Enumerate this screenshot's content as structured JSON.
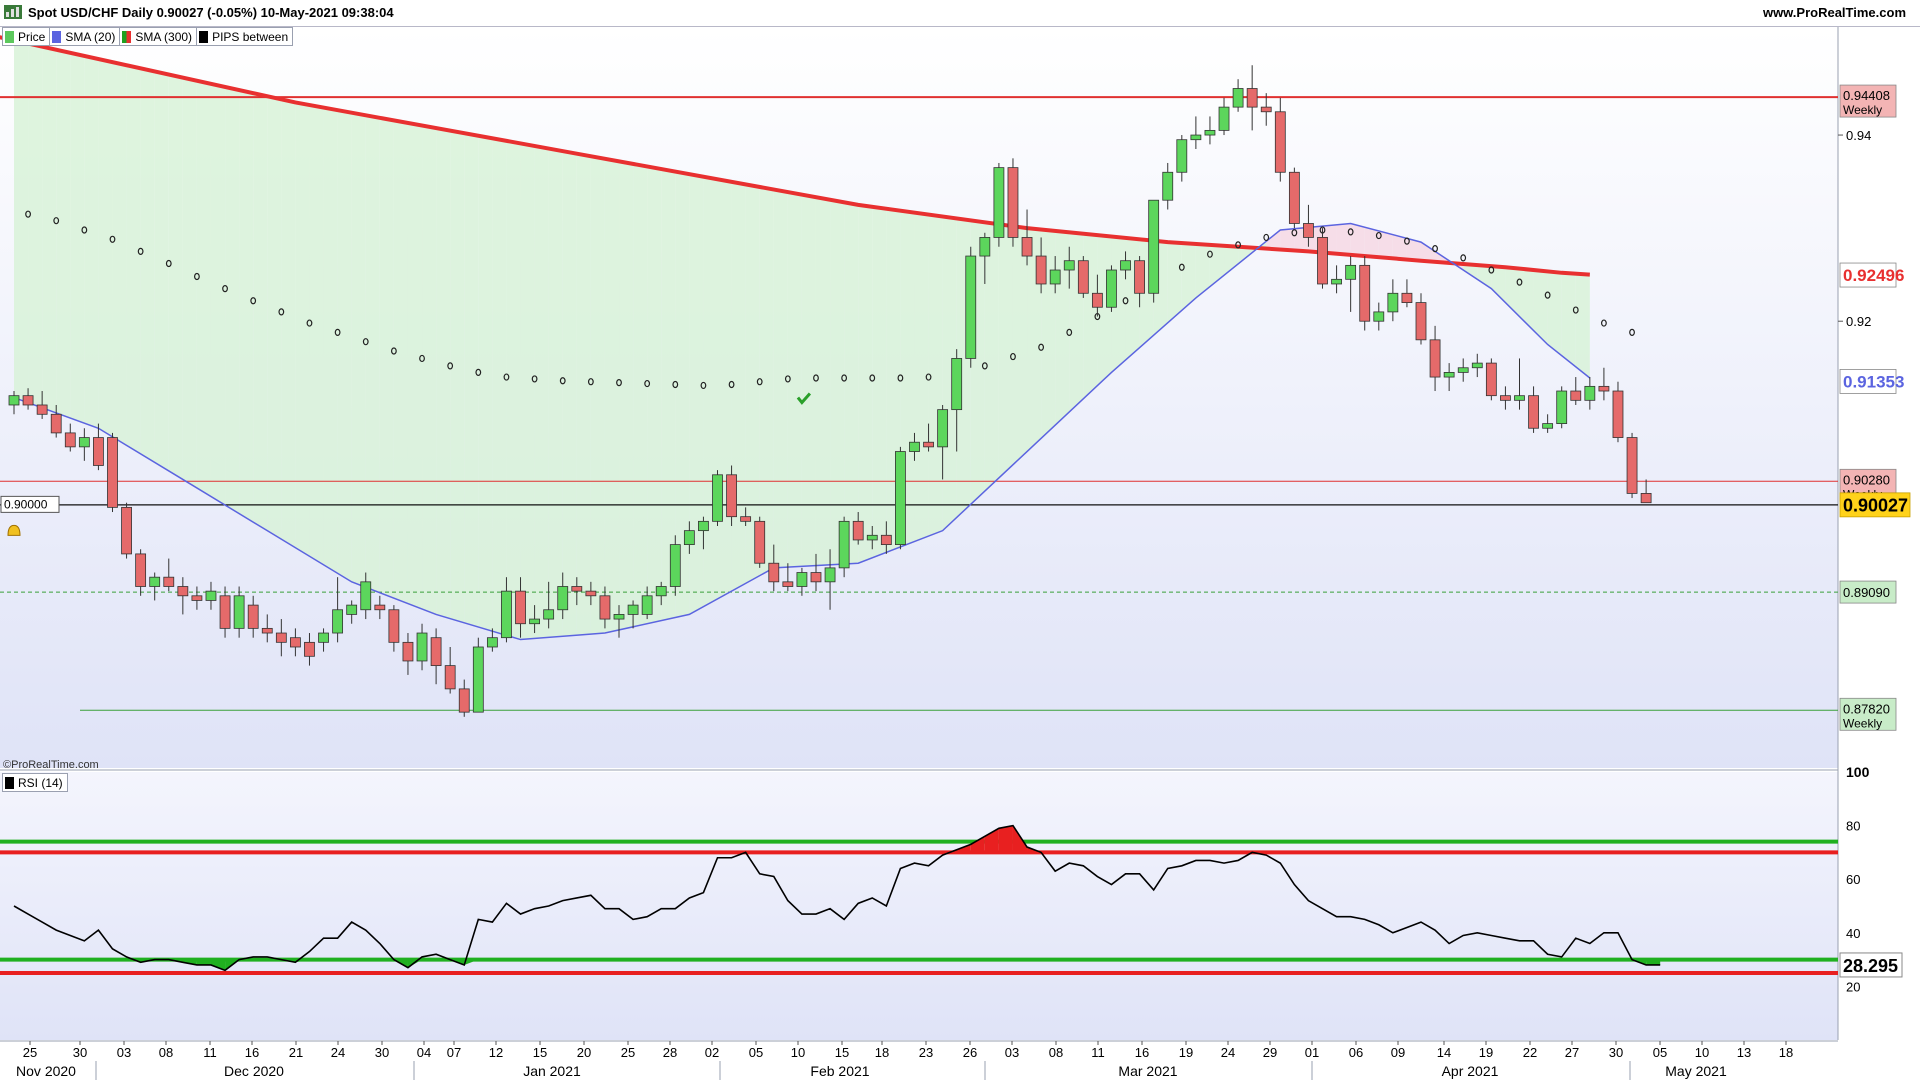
{
  "header": {
    "title": "Spot USD/CHF Daily 0.90027 (-0.05%) 10-May-2021 09:38:04",
    "site": "www.ProRealTime.com",
    "watermark": "©ProRealTime.com"
  },
  "legend": [
    {
      "label": "Price",
      "color": "#5cc85c"
    },
    {
      "label": "SMA (20)",
      "color": "#5b64e0"
    },
    {
      "label": "SMA (300)",
      "color": "#e83030"
    },
    {
      "label": "PIPS between",
      "color": "#000000"
    }
  ],
  "rsi_legend": {
    "label": "RSI (14)",
    "color": "#000000"
  },
  "colors": {
    "bull": "#5cd65c",
    "bear": "#e56a6a",
    "sma20": "#5b64e0",
    "sma300": "#e83030",
    "dots": "#222222"
  },
  "chart_data": [
    {
      "type": "candlestick",
      "title": "Spot USD/CHF Daily",
      "ylim": [
        0.872,
        0.9515
      ],
      "y_ticks": [
        0.92,
        0.94
      ],
      "price_labels": [
        {
          "value": 0.94408,
          "label": "0.94408",
          "sublabel": "Weekly",
          "kind": "weekly-red"
        },
        {
          "value": 0.92496,
          "label": "0.92496",
          "kind": "sma300"
        },
        {
          "value": 0.91353,
          "label": "0.91353",
          "kind": "sma20"
        },
        {
          "value": 0.9028,
          "label": "0.90280",
          "sublabel": "Weekly",
          "kind": "weekly-red"
        },
        {
          "value": 0.90027,
          "label": "0.90027",
          "kind": "last"
        },
        {
          "value": 0.8909,
          "label": "0.89090",
          "kind": "weekly-green"
        },
        {
          "value": 0.8782,
          "label": "0.87820",
          "sublabel": "Weekly",
          "kind": "weekly-green"
        }
      ],
      "alert_line": {
        "value": 0.9,
        "label": "0.90000"
      },
      "x_day_labels": [
        "25",
        "30",
        "03",
        "08",
        "11",
        "16",
        "21",
        "24",
        "30",
        "04",
        "07",
        "12",
        "15",
        "20",
        "25",
        "28",
        "02",
        "05",
        "10",
        "15",
        "18",
        "23",
        "26",
        "03",
        "08",
        "11",
        "16",
        "19",
        "24",
        "29",
        "01",
        "06",
        "09",
        "14",
        "19",
        "22",
        "27",
        "30",
        "05",
        "10",
        "13",
        "18"
      ],
      "x_month_labels": [
        "Nov 2020",
        "Dec 2020",
        "Jan 2021",
        "Feb 2021",
        "Mar 2021",
        "Apr 2021",
        "May 2021"
      ],
      "candles": [
        [
          0.911,
          0.9125,
          0.91,
          0.912
        ],
        [
          0.912,
          0.9128,
          0.9105,
          0.911
        ],
        [
          0.911,
          0.9125,
          0.9095,
          0.91
        ],
        [
          0.91,
          0.911,
          0.9075,
          0.908
        ],
        [
          0.908,
          0.909,
          0.906,
          0.9065
        ],
        [
          0.9065,
          0.9085,
          0.905,
          0.9075
        ],
        [
          0.9075,
          0.909,
          0.904,
          0.9045
        ],
        [
          0.9075,
          0.908,
          0.8995,
          0.9
        ],
        [
          0.9,
          0.9005,
          0.8945,
          0.895
        ],
        [
          0.895,
          0.8955,
          0.8905,
          0.8915
        ],
        [
          0.8915,
          0.893,
          0.89,
          0.8925
        ],
        [
          0.8925,
          0.8945,
          0.891,
          0.8915
        ],
        [
          0.8915,
          0.8925,
          0.8885,
          0.8905
        ],
        [
          0.8905,
          0.8915,
          0.889,
          0.89
        ],
        [
          0.89,
          0.892,
          0.889,
          0.891
        ],
        [
          0.8905,
          0.8915,
          0.886,
          0.887
        ],
        [
          0.887,
          0.8915,
          0.886,
          0.8905
        ],
        [
          0.8895,
          0.8905,
          0.886,
          0.887
        ],
        [
          0.887,
          0.8885,
          0.8855,
          0.8865
        ],
        [
          0.8865,
          0.888,
          0.884,
          0.8855
        ],
        [
          0.886,
          0.887,
          0.884,
          0.885
        ],
        [
          0.8855,
          0.8865,
          0.883,
          0.884
        ],
        [
          0.8855,
          0.887,
          0.8845,
          0.8865
        ],
        [
          0.8865,
          0.8925,
          0.8855,
          0.889
        ],
        [
          0.8885,
          0.89,
          0.8875,
          0.8895
        ],
        [
          0.889,
          0.893,
          0.888,
          0.892
        ],
        [
          0.8895,
          0.8905,
          0.888,
          0.889
        ],
        [
          0.889,
          0.8895,
          0.8845,
          0.8855
        ],
        [
          0.8855,
          0.8865,
          0.882,
          0.8835
        ],
        [
          0.8835,
          0.8875,
          0.8825,
          0.8865
        ],
        [
          0.886,
          0.887,
          0.881,
          0.883
        ],
        [
          0.883,
          0.885,
          0.88,
          0.8805
        ],
        [
          0.8805,
          0.8815,
          0.8775,
          0.878
        ],
        [
          0.878,
          0.886,
          0.878,
          0.885
        ],
        [
          0.885,
          0.887,
          0.8845,
          0.886
        ],
        [
          0.886,
          0.8925,
          0.8855,
          0.891
        ],
        [
          0.891,
          0.8925,
          0.886,
          0.8875
        ],
        [
          0.8875,
          0.8895,
          0.8865,
          0.888
        ],
        [
          0.888,
          0.892,
          0.887,
          0.889
        ],
        [
          0.889,
          0.893,
          0.888,
          0.8915
        ],
        [
          0.8915,
          0.8925,
          0.8895,
          0.891
        ],
        [
          0.891,
          0.892,
          0.8895,
          0.8905
        ],
        [
          0.8905,
          0.8915,
          0.887,
          0.888
        ],
        [
          0.888,
          0.8895,
          0.886,
          0.8885
        ],
        [
          0.8885,
          0.89,
          0.887,
          0.8895
        ],
        [
          0.8885,
          0.8915,
          0.888,
          0.8905
        ],
        [
          0.8905,
          0.892,
          0.8895,
          0.8915
        ],
        [
          0.8915,
          0.897,
          0.8905,
          0.896
        ],
        [
          0.896,
          0.8985,
          0.895,
          0.8975
        ],
        [
          0.8975,
          0.899,
          0.8955,
          0.8985
        ],
        [
          0.8985,
          0.904,
          0.898,
          0.9035
        ],
        [
          0.9035,
          0.9045,
          0.898,
          0.899
        ],
        [
          0.899,
          0.9,
          0.898,
          0.8985
        ],
        [
          0.8985,
          0.899,
          0.8935,
          0.894
        ],
        [
          0.894,
          0.896,
          0.891,
          0.892
        ],
        [
          0.892,
          0.894,
          0.891,
          0.8915
        ],
        [
          0.8915,
          0.8935,
          0.8905,
          0.893
        ],
        [
          0.893,
          0.895,
          0.891,
          0.892
        ],
        [
          0.892,
          0.8955,
          0.889,
          0.8935
        ],
        [
          0.8935,
          0.899,
          0.8925,
          0.8985
        ],
        [
          0.8985,
          0.8995,
          0.896,
          0.8965
        ],
        [
          0.8965,
          0.898,
          0.8955,
          0.897
        ],
        [
          0.897,
          0.8985,
          0.895,
          0.896
        ],
        [
          0.896,
          0.9065,
          0.8955,
          0.906
        ],
        [
          0.906,
          0.908,
          0.905,
          0.907
        ],
        [
          0.907,
          0.909,
          0.906,
          0.9065
        ],
        [
          0.9065,
          0.911,
          0.903,
          0.9105
        ],
        [
          0.9105,
          0.917,
          0.906,
          0.916
        ],
        [
          0.916,
          0.928,
          0.915,
          0.927
        ],
        [
          0.927,
          0.9295,
          0.924,
          0.929
        ],
        [
          0.929,
          0.937,
          0.928,
          0.9365
        ],
        [
          0.9365,
          0.9375,
          0.928,
          0.929
        ],
        [
          0.929,
          0.932,
          0.926,
          0.927
        ],
        [
          0.927,
          0.929,
          0.923,
          0.924
        ],
        [
          0.924,
          0.927,
          0.923,
          0.9255
        ],
        [
          0.9255,
          0.928,
          0.9235,
          0.9265
        ],
        [
          0.9265,
          0.927,
          0.9225,
          0.923
        ],
        [
          0.923,
          0.925,
          0.9205,
          0.9215
        ],
        [
          0.9215,
          0.926,
          0.921,
          0.9255
        ],
        [
          0.9255,
          0.9275,
          0.9245,
          0.9265
        ],
        [
          0.9265,
          0.927,
          0.9215,
          0.923
        ],
        [
          0.923,
          0.933,
          0.922,
          0.933
        ],
        [
          0.933,
          0.937,
          0.932,
          0.936
        ],
        [
          0.936,
          0.94,
          0.935,
          0.9395
        ],
        [
          0.9395,
          0.942,
          0.9385,
          0.94
        ],
        [
          0.94,
          0.942,
          0.939,
          0.9405
        ],
        [
          0.9405,
          0.944,
          0.94,
          0.943
        ],
        [
          0.943,
          0.946,
          0.9425,
          0.945
        ],
        [
          0.945,
          0.9475,
          0.9405,
          0.943
        ],
        [
          0.943,
          0.9445,
          0.941,
          0.9425
        ],
        [
          0.9425,
          0.944,
          0.935,
          0.936
        ],
        [
          0.936,
          0.9365,
          0.93,
          0.9305
        ],
        [
          0.9305,
          0.9325,
          0.928,
          0.929
        ],
        [
          0.929,
          0.93,
          0.9235,
          0.924
        ],
        [
          0.924,
          0.926,
          0.923,
          0.9245
        ],
        [
          0.9245,
          0.927,
          0.921,
          0.926
        ],
        [
          0.926,
          0.927,
          0.919,
          0.92
        ],
        [
          0.92,
          0.922,
          0.919,
          0.921
        ],
        [
          0.921,
          0.9245,
          0.92,
          0.923
        ],
        [
          0.923,
          0.9245,
          0.9215,
          0.922
        ],
        [
          0.922,
          0.923,
          0.9175,
          0.918
        ],
        [
          0.918,
          0.9195,
          0.9125,
          0.914
        ],
        [
          0.914,
          0.9155,
          0.9125,
          0.9145
        ],
        [
          0.9145,
          0.916,
          0.9135,
          0.915
        ],
        [
          0.915,
          0.9165,
          0.914,
          0.9155
        ],
        [
          0.9155,
          0.916,
          0.9115,
          0.912
        ],
        [
          0.912,
          0.913,
          0.9105,
          0.9115
        ],
        [
          0.9115,
          0.916,
          0.9105,
          0.912
        ],
        [
          0.912,
          0.913,
          0.908,
          0.9085
        ],
        [
          0.9085,
          0.91,
          0.908,
          0.909
        ],
        [
          0.909,
          0.913,
          0.9085,
          0.9125
        ],
        [
          0.9125,
          0.914,
          0.911,
          0.9115
        ],
        [
          0.9115,
          0.914,
          0.9105,
          0.913
        ],
        [
          0.913,
          0.915,
          0.9115,
          0.9125
        ],
        [
          0.9125,
          0.9135,
          0.907,
          0.9075
        ],
        [
          0.9075,
          0.908,
          0.901,
          0.9015
        ],
        [
          0.9015,
          0.903,
          0.9005,
          0.9005
        ]
      ],
      "sma20": [
        [
          0,
          0.9118
        ],
        [
          6,
          0.9085
        ],
        [
          12,
          0.903
        ],
        [
          18,
          0.8975
        ],
        [
          24,
          0.892
        ],
        [
          30,
          0.8885
        ],
        [
          36,
          0.8858
        ],
        [
          42,
          0.8865
        ],
        [
          48,
          0.8885
        ],
        [
          54,
          0.8935
        ],
        [
          60,
          0.894
        ],
        [
          66,
          0.8975
        ],
        [
          72,
          0.906
        ],
        [
          78,
          0.9145
        ],
        [
          84,
          0.9225
        ],
        [
          90,
          0.9298
        ],
        [
          95,
          0.9305
        ],
        [
          100,
          0.9285
        ],
        [
          105,
          0.9235
        ],
        [
          109,
          0.9175
        ],
        [
          112,
          0.9139
        ]
      ],
      "sma300": [
        [
          -4,
          0.9515
        ],
        [
          20,
          0.9435
        ],
        [
          40,
          0.938
        ],
        [
          60,
          0.9325
        ],
        [
          72,
          0.93
        ],
        [
          82,
          0.9285
        ],
        [
          92,
          0.9275
        ],
        [
          100,
          0.9265
        ],
        [
          106,
          0.9258
        ],
        [
          110,
          0.9252
        ],
        [
          112,
          0.925
        ]
      ],
      "sar": [
        [
          1,
          0.9315
        ],
        [
          3,
          0.9308
        ],
        [
          5,
          0.9298
        ],
        [
          7,
          0.9288
        ],
        [
          9,
          0.9275
        ],
        [
          11,
          0.9262
        ],
        [
          13,
          0.9248
        ],
        [
          15,
          0.9235
        ],
        [
          17,
          0.9222
        ],
        [
          19,
          0.921
        ],
        [
          21,
          0.9198
        ],
        [
          23,
          0.9188
        ],
        [
          25,
          0.9178
        ],
        [
          27,
          0.9168
        ],
        [
          29,
          0.916
        ],
        [
          31,
          0.9152
        ],
        [
          33,
          0.9145
        ],
        [
          35,
          0.914
        ],
        [
          37,
          0.9138
        ],
        [
          39,
          0.9136
        ],
        [
          41,
          0.9135
        ],
        [
          43,
          0.9134
        ],
        [
          45,
          0.9133
        ],
        [
          47,
          0.9132
        ],
        [
          49,
          0.9131
        ],
        [
          51,
          0.9132
        ],
        [
          53,
          0.9135
        ],
        [
          55,
          0.9138
        ],
        [
          57,
          0.9139
        ],
        [
          59,
          0.9139
        ],
        [
          61,
          0.9139
        ],
        [
          63,
          0.9139
        ],
        [
          65,
          0.914
        ],
        [
          67,
          0.9144
        ],
        [
          69,
          0.9152
        ],
        [
          71,
          0.9162
        ],
        [
          73,
          0.9172
        ],
        [
          75,
          0.9188
        ],
        [
          77,
          0.9205
        ],
        [
          79,
          0.9222
        ],
        [
          81,
          0.924
        ],
        [
          83,
          0.9258
        ],
        [
          85,
          0.9272
        ],
        [
          87,
          0.9282
        ],
        [
          89,
          0.929
        ],
        [
          91,
          0.9295
        ],
        [
          93,
          0.9298
        ],
        [
          95,
          0.9296
        ],
        [
          97,
          0.9292
        ],
        [
          99,
          0.9286
        ],
        [
          101,
          0.9278
        ],
        [
          103,
          0.9268
        ],
        [
          105,
          0.9255
        ],
        [
          107,
          0.9242
        ],
        [
          109,
          0.9228
        ],
        [
          111,
          0.9212
        ],
        [
          113,
          0.9198
        ],
        [
          115,
          0.9188
        ]
      ],
      "sar_step": 1,
      "sma_fill_band": [
        0,
        112
      ]
    },
    {
      "type": "line",
      "title": "RSI (14)",
      "ylim": [
        0,
        100
      ],
      "y_ticks": [
        20,
        40,
        60,
        80,
        100
      ],
      "last_value_label": "28.295",
      "levels": [
        {
          "value": 74,
          "color": "#20b020"
        },
        {
          "value": 70,
          "color": "#e82020"
        },
        {
          "value": 30,
          "color": "#20b020"
        },
        {
          "value": 25,
          "color": "#e82020"
        }
      ],
      "values": [
        50,
        47,
        44,
        41,
        39,
        37,
        41,
        34,
        31,
        29,
        30,
        30,
        29,
        28,
        28,
        26,
        30,
        31,
        31,
        30,
        29,
        33,
        38,
        38,
        44,
        41,
        36,
        30,
        27,
        31,
        32,
        30,
        28,
        45,
        44,
        51,
        47,
        49,
        50,
        52,
        53,
        54,
        49,
        49,
        45,
        46,
        49,
        49,
        53,
        55,
        68,
        68,
        70,
        62,
        61,
        52,
        47,
        47,
        49,
        45,
        51,
        53,
        50,
        64,
        66,
        65,
        69,
        71,
        73,
        76,
        79,
        80,
        72,
        70,
        63,
        66,
        65,
        61,
        58,
        62,
        62,
        56,
        64,
        65,
        67,
        67,
        66,
        67,
        70,
        69,
        66,
        58,
        52,
        49,
        46,
        46,
        45,
        43,
        40,
        42,
        44,
        41,
        36,
        39,
        40,
        39,
        38,
        37,
        37,
        32,
        31,
        38,
        36,
        40,
        40,
        30,
        28,
        28
      ],
      "x_step": 1
    }
  ]
}
